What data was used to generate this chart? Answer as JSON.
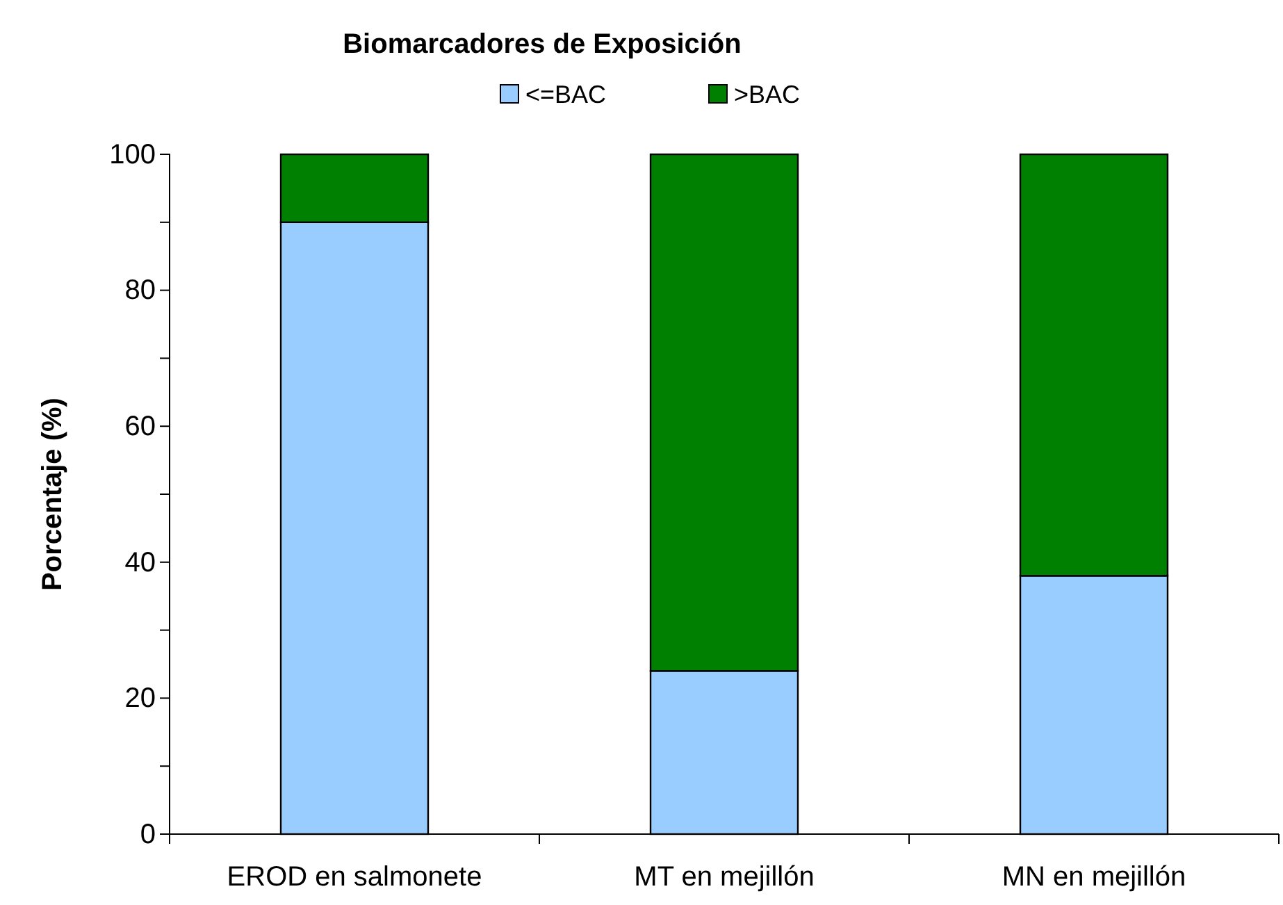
{
  "chart_data": {
    "type": "bar",
    "stacked": true,
    "title": "Biomarcadores de Exposición",
    "ylabel": "Porcentaje (%)",
    "categories": [
      "EROD en salmonete",
      "MT  en mejillón",
      "MN en mejillón"
    ],
    "series": [
      {
        "name": "<=BAC",
        "color": "#99ccff",
        "values": [
          90,
          24,
          38
        ]
      },
      {
        "name": ">BAC",
        "color": "#008000",
        "values": [
          10,
          76,
          62
        ]
      }
    ],
    "ylim": [
      0,
      100
    ],
    "yticks": [
      0,
      {
        "value": 10,
        "label": null
      },
      20,
      {
        "value": 30,
        "label": null
      },
      40,
      {
        "value": 50,
        "label": null
      },
      60,
      {
        "value": 70,
        "label": null
      },
      80,
      {
        "value": 90,
        "label": null
      },
      100
    ],
    "grid": false,
    "legend": "top"
  }
}
